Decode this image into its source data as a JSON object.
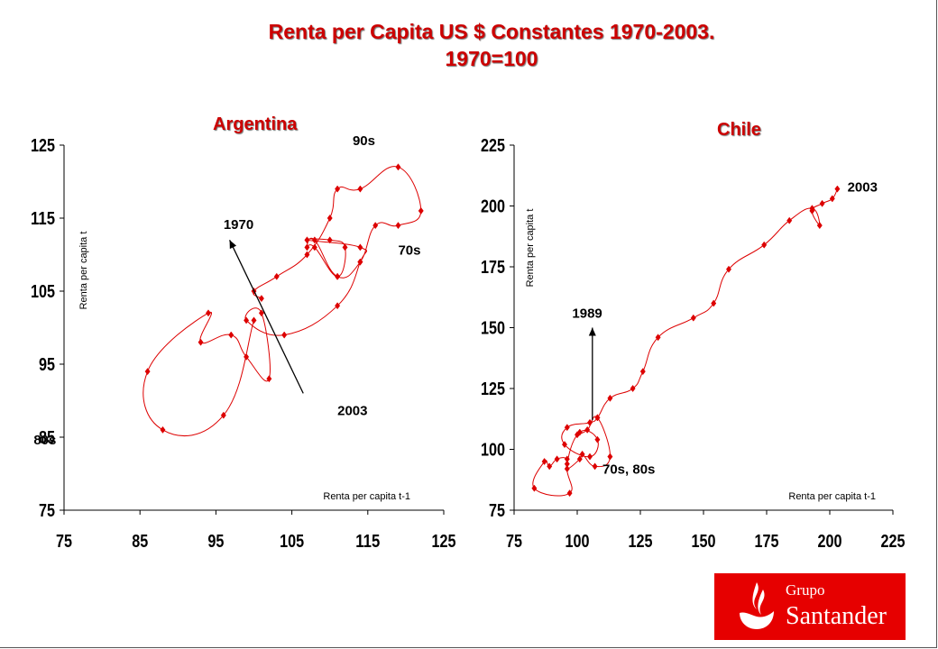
{
  "title": {
    "line1": "Renta per Capita US $ Constantes 1970-2003.",
    "line2": "1970=100"
  },
  "logo": {
    "word1": "Grupo",
    "word2": "Santander",
    "color": "#e60000"
  },
  "chart_data": [
    {
      "type": "scatter",
      "title": "Argentina",
      "xlabel": "Renta per capita t-1",
      "ylabel": "Renta per capita  t",
      "xlim": [
        75,
        125
      ],
      "ylim": [
        75,
        125
      ],
      "xticks": [
        75,
        85,
        95,
        105,
        115,
        125
      ],
      "yticks": [
        75,
        85,
        95,
        105,
        115,
        125
      ],
      "grid": false,
      "color": "#dd0000",
      "series": [
        {
          "points": [
            [
              101,
              104
            ],
            [
              100,
              105
            ],
            [
              103,
              107
            ],
            [
              107,
              110
            ],
            [
              110,
              115
            ],
            [
              111,
              119
            ],
            [
              114,
              119
            ],
            [
              119,
              122
            ],
            [
              122,
              116
            ],
            [
              119,
              114
            ],
            [
              116,
              114
            ],
            [
              114,
              109
            ],
            [
              111,
              107
            ],
            [
              108,
              112
            ],
            [
              107,
              111
            ],
            [
              108,
              111
            ],
            [
              111,
              107
            ],
            [
              112,
              111
            ],
            [
              110,
              112
            ],
            [
              107,
              112
            ],
            [
              114,
              111
            ],
            [
              114,
              109
            ],
            [
              111,
              103
            ],
            [
              104,
              99
            ],
            [
              99,
              101
            ],
            [
              101,
              102
            ],
            [
              102,
              93
            ],
            [
              99,
              96
            ],
            [
              97,
              99
            ],
            [
              93,
              98
            ],
            [
              94,
              102
            ],
            [
              86,
              94
            ],
            [
              88,
              86
            ],
            [
              96,
              88
            ],
            [
              100,
              101
            ]
          ]
        }
      ],
      "annotations": [
        {
          "text": "1970",
          "x": 96,
          "y": 113.5
        },
        {
          "text": "2003",
          "x": 111,
          "y": 88
        },
        {
          "text": "90s",
          "x": 113,
          "y": 125
        },
        {
          "text": "70s",
          "x": 119,
          "y": 110
        },
        {
          "text": "80s",
          "x": 71,
          "y": 84
        }
      ],
      "arrow": {
        "from": [
          106.5,
          91
        ],
        "to": [
          96.8,
          112
        ]
      }
    },
    {
      "type": "scatter",
      "title": "Chile",
      "xlabel": "Renta per capita t-1",
      "ylabel": "Renta per capita  t",
      "xlim": [
        75,
        225
      ],
      "ylim": [
        75,
        225
      ],
      "xticks": [
        75,
        100,
        125,
        150,
        175,
        200,
        225
      ],
      "yticks": [
        75,
        100,
        125,
        150,
        175,
        200,
        225
      ],
      "grid": false,
      "color": "#dd0000",
      "series": [
        {
          "points": [
            [
              100,
              106
            ],
            [
              104,
              108
            ],
            [
              108,
              113
            ],
            [
              113,
              97
            ],
            [
              107,
              93
            ],
            [
              102,
              98
            ],
            [
              101,
              96
            ],
            [
              96,
              92
            ],
            [
              96,
              96
            ],
            [
              92,
              96
            ],
            [
              89,
              93
            ],
            [
              87,
              95
            ],
            [
              83,
              84
            ],
            [
              97,
              82
            ],
            [
              96,
              94
            ],
            [
              101,
              107
            ],
            [
              108,
              104
            ],
            [
              105,
              97
            ],
            [
              95,
              102
            ],
            [
              96,
              109
            ],
            [
              105,
              111
            ],
            [
              108,
              113
            ],
            [
              113,
              121
            ],
            [
              122,
              125
            ],
            [
              126,
              132
            ],
            [
              132,
              146
            ],
            [
              146,
              154
            ],
            [
              154,
              160
            ],
            [
              160,
              174
            ],
            [
              174,
              184
            ],
            [
              184,
              194
            ],
            [
              193,
              199
            ],
            [
              196,
              192
            ],
            [
              193,
              198
            ],
            [
              197,
              201
            ],
            [
              201,
              203
            ],
            [
              203,
              207
            ]
          ]
        }
      ],
      "annotations": [
        {
          "text": "2003",
          "x": 207,
          "y": 206
        },
        {
          "text": "1989",
          "x": 98,
          "y": 154
        },
        {
          "text": "70s, 80s",
          "x": 110,
          "y": 90
        }
      ],
      "arrow": {
        "from": [
          106,
          112
        ],
        "to": [
          106,
          150
        ]
      }
    }
  ]
}
